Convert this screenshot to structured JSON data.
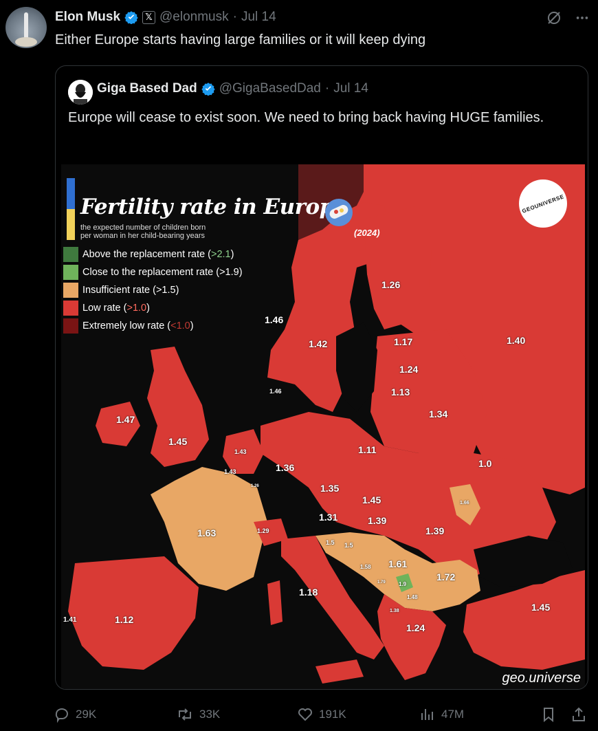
{
  "tweet": {
    "author_name": "Elon Musk",
    "handle": "@elonmusk",
    "time": "Jul 14",
    "x_badge": "𝕏",
    "text": "Either Europe starts having large families or it will keep dying"
  },
  "quote": {
    "author_name": "Giga Based Dad",
    "handle": "@GigaBasedDad",
    "time": "Jul 14",
    "text": "Europe will cease to exist soon. We need to bring back having HUGE families."
  },
  "map": {
    "title": "Fertility rate in Europe",
    "subtitle_line1": "the expected number of children born",
    "subtitle_line2": "per woman in her child-bearing years",
    "year": "(2024)",
    "brand": "GEOUNIVERSE",
    "watermark": "geo.universe",
    "legend": [
      {
        "text": "Above the replacement rate (",
        "hl": ">2.1",
        "end": ")",
        "color": "#3f7a3e",
        "hl_color": "#8fd18c"
      },
      {
        "text": "Close to the replacement rate (",
        "hl": ">1.9",
        "end": ")",
        "color": "#6fb35b",
        "hl_color": "#ffffff"
      },
      {
        "text": "Insufficient rate (",
        "hl": ">1.5",
        "end": ")",
        "color": "#e8a765",
        "hl_color": "#ffffff"
      },
      {
        "text": "Low rate (",
        "hl": ">1.0",
        "end": ")",
        "color": "#d93a35",
        "hl_color": "#ff6a5e"
      },
      {
        "text": "Extremely low rate (",
        "hl": "<1.0",
        "end": ")",
        "color": "#7a1414",
        "hl_color": "#c23a33"
      }
    ],
    "values": {
      "norway": "1.46",
      "sweden": "1.42",
      "finland": "1.26",
      "russia": "1.40",
      "estonia": "1.17",
      "latvia": "1.24",
      "lithuania": "1.13",
      "belarus": "1.34",
      "denmark": "1.46",
      "ireland": "1.47",
      "uk": "1.45",
      "netherlands": "1.43",
      "belgium": "1.43",
      "luxembourg": "1.26",
      "germany": "1.36",
      "poland": "1.11",
      "ukraine": "1.0",
      "czechia": "1.35",
      "slovakia": "1.45",
      "moldova": "1.66",
      "austria": "1.31",
      "hungary": "1.39",
      "romania": "1.39",
      "france": "1.63",
      "switzerland": "1.29",
      "slovenia": "1.5",
      "croatia": "1.5",
      "bosnia": "1.58",
      "serbia": "1.61",
      "montenegro": "1.79",
      "kosovo": "1.9",
      "bulgaria": "1.72",
      "north_macedonia": "1.48",
      "albania": "1.38",
      "greece": "1.24",
      "italy": "1.18",
      "spain": "1.12",
      "portugal": "1.41",
      "turkey": "1.45"
    }
  },
  "actions": {
    "replies": "29K",
    "reposts": "33K",
    "likes": "191K",
    "views": "47M"
  },
  "colors": {
    "low_red": "#d93a35",
    "orange": "#e8a765",
    "green": "#6fb35b",
    "verified_blue": "#1d9bf0"
  }
}
